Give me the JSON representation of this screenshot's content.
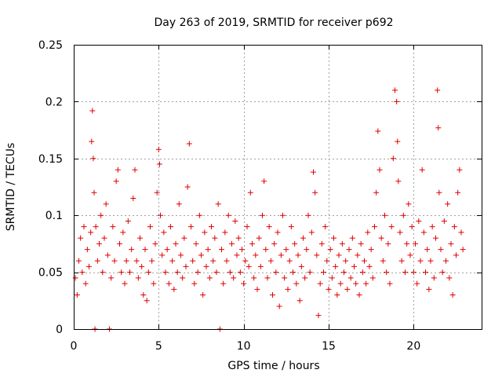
{
  "chart_data": {
    "type": "scatter",
    "title": "Day 263 of 2019, SRMTID for receiver p692",
    "xlabel": "GPS time / hours",
    "ylabel": "SRMTID / TECUs",
    "xlim": [
      0,
      24
    ],
    "ylim": [
      0,
      0.25
    ],
    "xticks": [
      0,
      5,
      10,
      15,
      20
    ],
    "xtick_labels": [
      "0",
      "5",
      "10",
      "15",
      "20"
    ],
    "yticks": [
      0,
      0.05,
      0.1,
      0.15,
      0.2,
      0.25
    ],
    "ytick_labels": [
      "0",
      "0.05",
      "0.1",
      "0.15",
      "0.2",
      "0.25"
    ],
    "grid": true,
    "marker": "+",
    "color": "#e00000",
    "series": [
      {
        "name": "SRMTID",
        "points": [
          [
            0.1,
            0.045
          ],
          [
            0.2,
            0.03
          ],
          [
            0.3,
            0.06
          ],
          [
            0.4,
            0.08
          ],
          [
            0.5,
            0.05
          ],
          [
            0.6,
            0.09
          ],
          [
            0.7,
            0.04
          ],
          [
            0.8,
            0.07
          ],
          [
            0.9,
            0.055
          ],
          [
            1.0,
            0.085
          ],
          [
            1.05,
            0.165
          ],
          [
            1.1,
            0.192
          ],
          [
            1.15,
            0.15
          ],
          [
            1.2,
            0.12
          ],
          [
            1.25,
            0.0
          ],
          [
            1.3,
            0.09
          ],
          [
            1.4,
            0.06
          ],
          [
            1.5,
            0.075
          ],
          [
            1.6,
            0.1
          ],
          [
            1.7,
            0.05
          ],
          [
            1.8,
            0.08
          ],
          [
            1.9,
            0.11
          ],
          [
            2.0,
            0.065
          ],
          [
            2.1,
            0.0
          ],
          [
            2.2,
            0.045
          ],
          [
            2.3,
            0.09
          ],
          [
            2.4,
            0.06
          ],
          [
            2.5,
            0.13
          ],
          [
            2.6,
            0.14
          ],
          [
            2.7,
            0.075
          ],
          [
            2.8,
            0.05
          ],
          [
            2.9,
            0.085
          ],
          [
            3.0,
            0.04
          ],
          [
            3.1,
            0.06
          ],
          [
            3.2,
            0.095
          ],
          [
            3.3,
            0.05
          ],
          [
            3.4,
            0.07
          ],
          [
            3.5,
            0.115
          ],
          [
            3.6,
            0.14
          ],
          [
            3.7,
            0.06
          ],
          [
            3.8,
            0.045
          ],
          [
            3.9,
            0.08
          ],
          [
            4.0,
            0.055
          ],
          [
            4.1,
            0.03
          ],
          [
            4.2,
            0.07
          ],
          [
            4.3,
            0.025
          ],
          [
            4.4,
            0.05
          ],
          [
            4.5,
            0.09
          ],
          [
            4.6,
            0.06
          ],
          [
            4.7,
            0.04
          ],
          [
            4.8,
            0.075
          ],
          [
            4.9,
            0.12
          ],
          [
            5.0,
            0.158
          ],
          [
            5.05,
            0.145
          ],
          [
            5.1,
            0.1
          ],
          [
            5.2,
            0.065
          ],
          [
            5.3,
            0.085
          ],
          [
            5.4,
            0.05
          ],
          [
            5.5,
            0.07
          ],
          [
            5.6,
            0.04
          ],
          [
            5.7,
            0.09
          ],
          [
            5.8,
            0.06
          ],
          [
            5.9,
            0.035
          ],
          [
            6.0,
            0.075
          ],
          [
            6.1,
            0.05
          ],
          [
            6.2,
            0.11
          ],
          [
            6.3,
            0.065
          ],
          [
            6.4,
            0.045
          ],
          [
            6.5,
            0.08
          ],
          [
            6.6,
            0.055
          ],
          [
            6.7,
            0.125
          ],
          [
            6.8,
            0.163
          ],
          [
            6.9,
            0.09
          ],
          [
            7.0,
            0.06
          ],
          [
            7.1,
            0.04
          ],
          [
            7.2,
            0.075
          ],
          [
            7.3,
            0.05
          ],
          [
            7.4,
            0.1
          ],
          [
            7.5,
            0.065
          ],
          [
            7.6,
            0.03
          ],
          [
            7.7,
            0.085
          ],
          [
            7.8,
            0.055
          ],
          [
            7.9,
            0.07
          ],
          [
            8.0,
            0.045
          ],
          [
            8.1,
            0.09
          ],
          [
            8.2,
            0.06
          ],
          [
            8.3,
            0.08
          ],
          [
            8.4,
            0.05
          ],
          [
            8.5,
            0.11
          ],
          [
            8.6,
            0.0
          ],
          [
            8.7,
            0.07
          ],
          [
            8.8,
            0.04
          ],
          [
            8.9,
            0.085
          ],
          [
            9.0,
            0.06
          ],
          [
            9.1,
            0.1
          ],
          [
            9.2,
            0.05
          ],
          [
            9.3,
            0.075
          ],
          [
            9.4,
            0.045
          ],
          [
            9.5,
            0.095
          ],
          [
            9.6,
            0.065
          ],
          [
            9.7,
            0.08
          ],
          [
            9.8,
            0.05
          ],
          [
            9.9,
            0.07
          ],
          [
            10.0,
            0.04
          ],
          [
            10.1,
            0.06
          ],
          [
            10.2,
            0.09
          ],
          [
            10.3,
            0.055
          ],
          [
            10.4,
            0.12
          ],
          [
            10.5,
            0.075
          ],
          [
            10.6,
            0.045
          ],
          [
            10.7,
            0.065
          ],
          [
            10.8,
            0.035
          ],
          [
            10.9,
            0.08
          ],
          [
            11.0,
            0.055
          ],
          [
            11.1,
            0.1
          ],
          [
            11.2,
            0.13
          ],
          [
            11.3,
            0.07
          ],
          [
            11.4,
            0.045
          ],
          [
            11.5,
            0.09
          ],
          [
            11.6,
            0.06
          ],
          [
            11.7,
            0.03
          ],
          [
            11.8,
            0.075
          ],
          [
            11.9,
            0.05
          ],
          [
            12.0,
            0.085
          ],
          [
            12.1,
            0.02
          ],
          [
            12.2,
            0.065
          ],
          [
            12.3,
            0.1
          ],
          [
            12.4,
            0.045
          ],
          [
            12.5,
            0.07
          ],
          [
            12.6,
            0.035
          ],
          [
            12.7,
            0.06
          ],
          [
            12.8,
            0.09
          ],
          [
            12.9,
            0.05
          ],
          [
            13.0,
            0.075
          ],
          [
            13.1,
            0.04
          ],
          [
            13.2,
            0.065
          ],
          [
            13.3,
            0.025
          ],
          [
            13.4,
            0.055
          ],
          [
            13.5,
            0.08
          ],
          [
            13.6,
            0.045
          ],
          [
            13.7,
            0.07
          ],
          [
            13.8,
            0.1
          ],
          [
            13.9,
            0.05
          ],
          [
            14.0,
            0.085
          ],
          [
            14.1,
            0.138
          ],
          [
            14.2,
            0.12
          ],
          [
            14.3,
            0.065
          ],
          [
            14.4,
            0.012
          ],
          [
            14.5,
            0.04
          ],
          [
            14.6,
            0.075
          ],
          [
            14.7,
            0.05
          ],
          [
            14.8,
            0.09
          ],
          [
            14.9,
            0.06
          ],
          [
            15.0,
            0.035
          ],
          [
            15.1,
            0.07
          ],
          [
            15.2,
            0.045
          ],
          [
            15.3,
            0.08
          ],
          [
            15.4,
            0.055
          ],
          [
            15.5,
            0.03
          ],
          [
            15.6,
            0.065
          ],
          [
            15.7,
            0.04
          ],
          [
            15.8,
            0.075
          ],
          [
            15.9,
            0.05
          ],
          [
            16.0,
            0.06
          ],
          [
            16.1,
            0.035
          ],
          [
            16.2,
            0.07
          ],
          [
            16.3,
            0.045
          ],
          [
            16.4,
            0.08
          ],
          [
            16.5,
            0.055
          ],
          [
            16.6,
            0.04
          ],
          [
            16.7,
            0.065
          ],
          [
            16.8,
            0.03
          ],
          [
            16.9,
            0.075
          ],
          [
            17.0,
            0.05
          ],
          [
            17.1,
            0.06
          ],
          [
            17.2,
            0.04
          ],
          [
            17.3,
            0.085
          ],
          [
            17.4,
            0.055
          ],
          [
            17.5,
            0.07
          ],
          [
            17.6,
            0.045
          ],
          [
            17.7,
            0.09
          ],
          [
            17.8,
            0.12
          ],
          [
            17.9,
            0.174
          ],
          [
            18.0,
            0.14
          ],
          [
            18.1,
            0.08
          ],
          [
            18.2,
            0.06
          ],
          [
            18.3,
            0.1
          ],
          [
            18.4,
            0.05
          ],
          [
            18.5,
            0.075
          ],
          [
            18.6,
            0.04
          ],
          [
            18.7,
            0.09
          ],
          [
            18.8,
            0.15
          ],
          [
            18.9,
            0.21
          ],
          [
            19.0,
            0.2
          ],
          [
            19.05,
            0.165
          ],
          [
            19.1,
            0.13
          ],
          [
            19.2,
            0.085
          ],
          [
            19.3,
            0.06
          ],
          [
            19.4,
            0.1
          ],
          [
            19.5,
            0.05
          ],
          [
            19.6,
            0.075
          ],
          [
            19.7,
            0.11
          ],
          [
            19.8,
            0.065
          ],
          [
            19.9,
            0.09
          ],
          [
            20.0,
            0.05
          ],
          [
            20.1,
            0.075
          ],
          [
            20.2,
            0.04
          ],
          [
            20.3,
            0.095
          ],
          [
            20.4,
            0.06
          ],
          [
            20.5,
            0.14
          ],
          [
            20.6,
            0.085
          ],
          [
            20.7,
            0.05
          ],
          [
            20.8,
            0.07
          ],
          [
            20.9,
            0.035
          ],
          [
            21.0,
            0.06
          ],
          [
            21.1,
            0.09
          ],
          [
            21.2,
            0.045
          ],
          [
            21.3,
            0.08
          ],
          [
            21.4,
            0.21
          ],
          [
            21.45,
            0.177
          ],
          [
            21.5,
            0.12
          ],
          [
            21.6,
            0.07
          ],
          [
            21.7,
            0.05
          ],
          [
            21.8,
            0.095
          ],
          [
            21.9,
            0.06
          ],
          [
            22.0,
            0.11
          ],
          [
            22.1,
            0.045
          ],
          [
            22.2,
            0.075
          ],
          [
            22.3,
            0.03
          ],
          [
            22.4,
            0.09
          ],
          [
            22.5,
            0.065
          ],
          [
            22.6,
            0.12
          ],
          [
            22.7,
            0.14
          ],
          [
            22.8,
            0.085
          ],
          [
            22.9,
            0.07
          ]
        ]
      }
    ]
  }
}
